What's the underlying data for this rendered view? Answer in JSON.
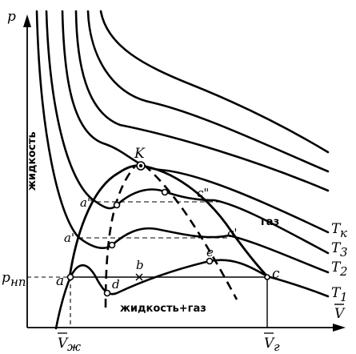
{
  "axes": {
    "y_label": "p",
    "x_label": "V"
  },
  "points": {
    "critical": "K",
    "a": "a",
    "a_prime": "a'",
    "a_double": "a\"",
    "b": "b",
    "c": "c",
    "c_prime": "c'",
    "c_double": "c\"",
    "d": "d",
    "e": "e"
  },
  "pressure_label": "p",
  "pressure_sub": "нп",
  "volume_liquid": "V",
  "volume_liquid_sub": "ж",
  "volume_gas": "V",
  "volume_gas_sub": "г",
  "regions": {
    "liquid": "жидкость",
    "gas": "газ",
    "liquid_gas": "жидкость+газ"
  },
  "isotherms": [
    {
      "name": "T",
      "sub": "к"
    },
    {
      "name": "T",
      "sub": "3"
    },
    {
      "name": "T",
      "sub": "2"
    },
    {
      "name": "T",
      "sub": "1"
    }
  ]
}
